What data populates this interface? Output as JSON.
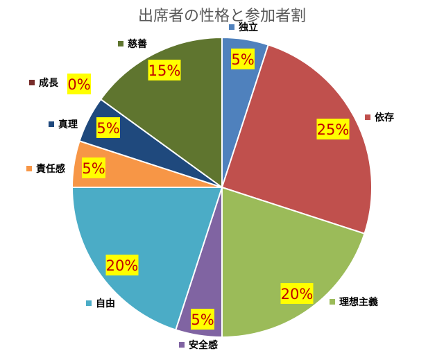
{
  "chart_data": {
    "type": "pie",
    "title": "出席者の性格と参加者割",
    "slices": [
      {
        "label": "独立",
        "value": 5,
        "display": "5%",
        "color": "#4f81bd"
      },
      {
        "label": "依存",
        "value": 25,
        "display": "25%",
        "color": "#c0504d"
      },
      {
        "label": "理想主義",
        "value": 20,
        "display": "20%",
        "color": "#9bbb59"
      },
      {
        "label": "安全感",
        "value": 5,
        "display": "5%",
        "color": "#8064a2"
      },
      {
        "label": "自由",
        "value": 20,
        "display": "20%",
        "color": "#4bacc6"
      },
      {
        "label": "責任感",
        "value": 5,
        "display": "5%",
        "color": "#f79646"
      },
      {
        "label": "真理",
        "value": 5,
        "display": "5%",
        "color": "#1f497d"
      },
      {
        "label": "成長",
        "value": 0,
        "display": "0%",
        "color": "#772c2a"
      },
      {
        "label": "慈善",
        "value": 15,
        "display": "15%",
        "color": "#5f752f"
      }
    ],
    "legend_placement": "around the pie, next to each slice"
  }
}
